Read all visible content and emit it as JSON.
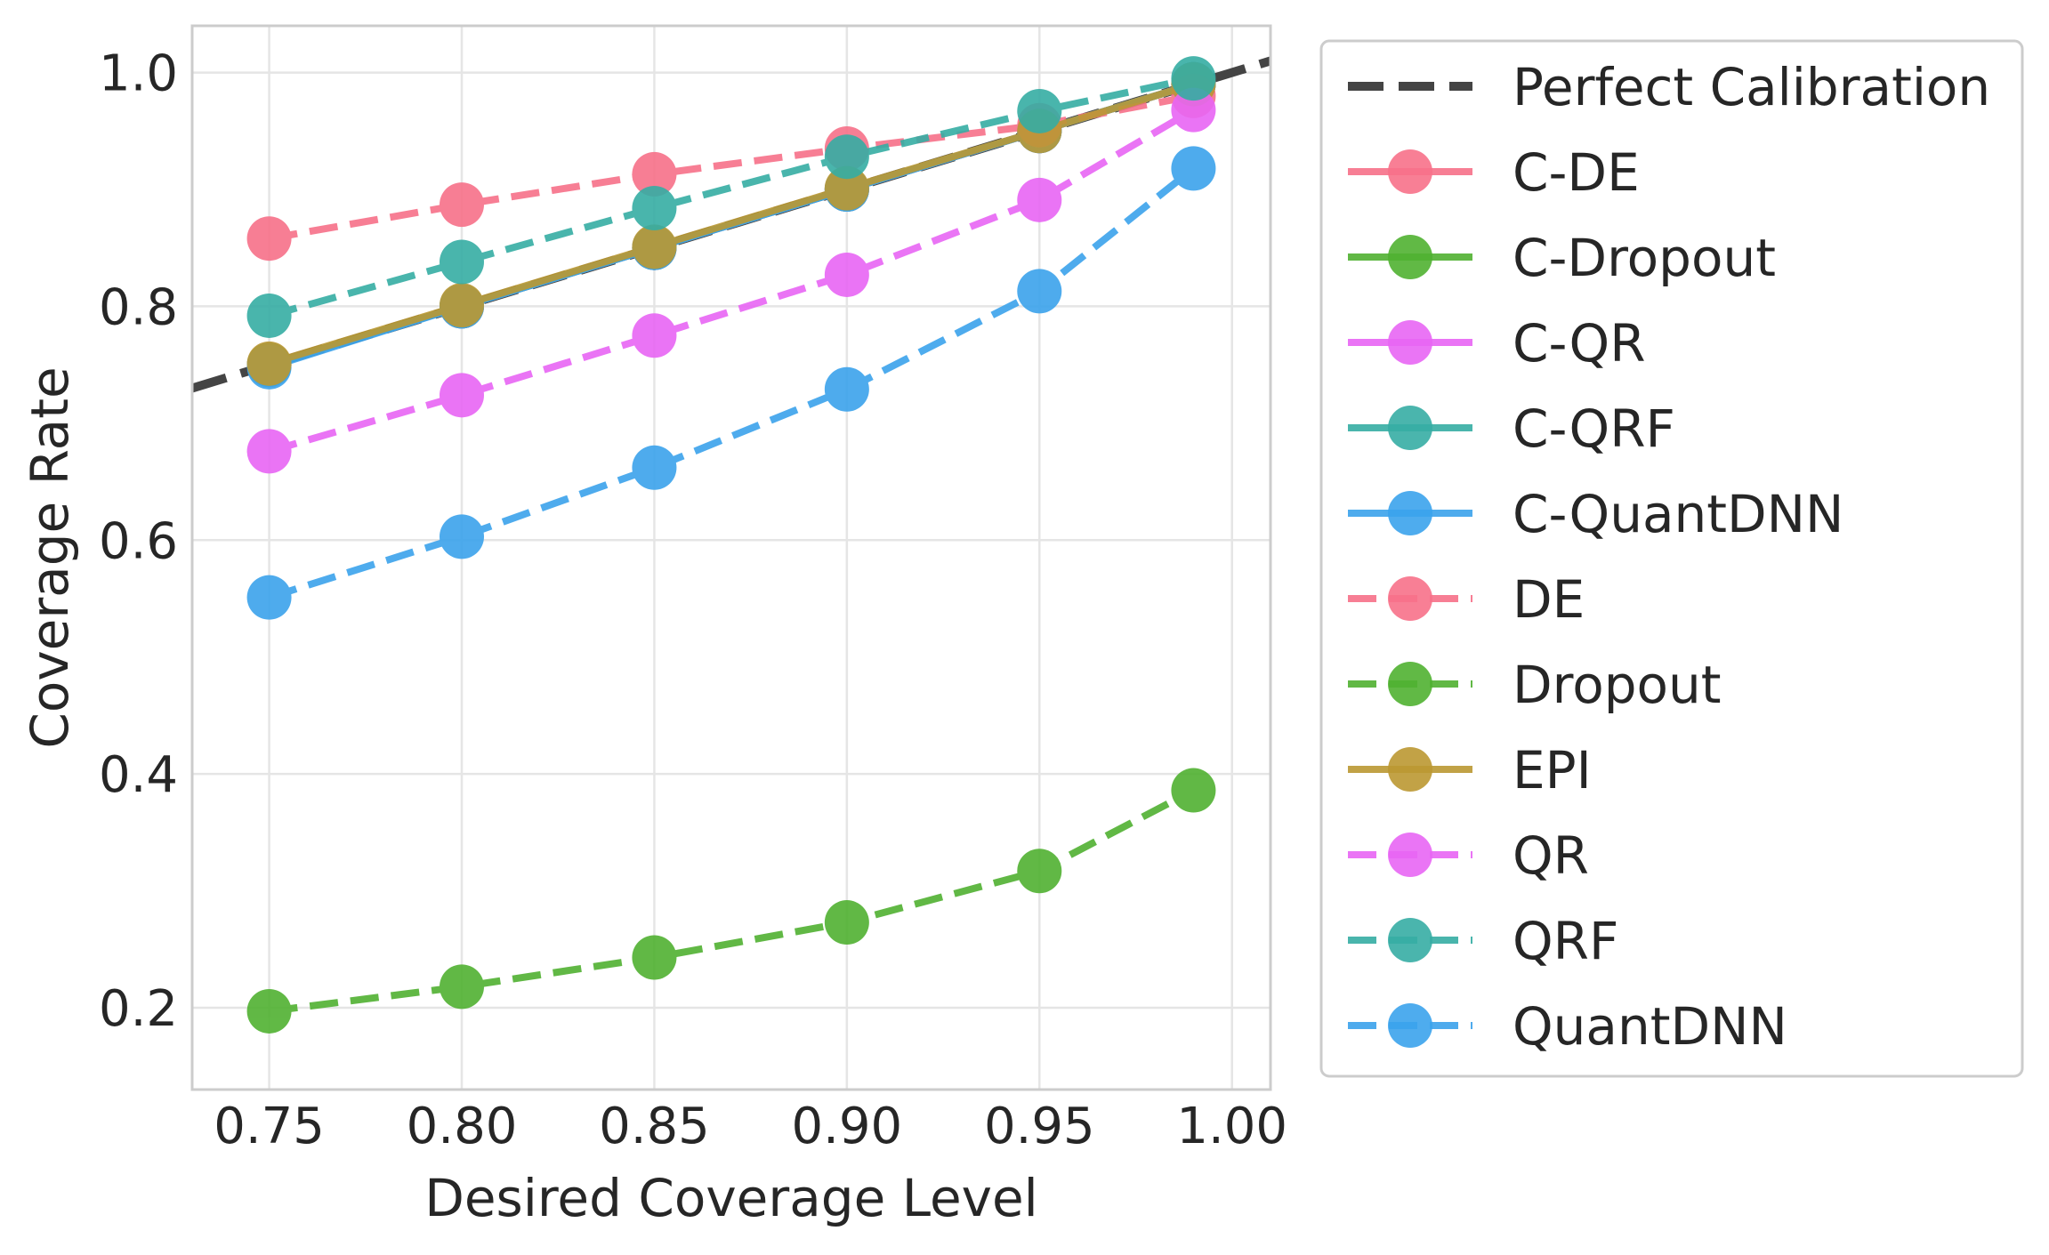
{
  "chart_data": {
    "type": "line",
    "xlabel": "Desired Coverage Level",
    "ylabel": "Coverage Rate",
    "xlim": [
      0.73,
      1.01
    ],
    "ylim": [
      0.13,
      1.04
    ],
    "xticks": [
      0.75,
      0.8,
      0.85,
      0.9,
      0.95,
      1.0
    ],
    "xtick_labels": [
      "0.75",
      "0.80",
      "0.85",
      "0.90",
      "0.95",
      "1.00"
    ],
    "yticks": [
      0.2,
      0.4,
      0.6,
      0.8,
      1.0
    ],
    "ytick_labels": [
      "0.2",
      "0.4",
      "0.6",
      "0.8",
      "1.0"
    ],
    "grid": true,
    "legend_position": "outside-right",
    "x": [
      0.75,
      0.8,
      0.85,
      0.9,
      0.95,
      0.99
    ],
    "reference_line": {
      "name": "Perfect Calibration",
      "x": [
        0.73,
        1.01
      ],
      "y": [
        0.73,
        1.01
      ],
      "color": "#444444",
      "style": "dashed"
    },
    "series": [
      {
        "name": "C-DE",
        "color": "#f77189",
        "style": "solid",
        "values": [
          0.75,
          0.8,
          0.85,
          0.9,
          0.95,
          0.99
        ]
      },
      {
        "name": "C-Dropout",
        "color": "#50b131",
        "style": "solid",
        "values": [
          0.75,
          0.8,
          0.85,
          0.9,
          0.95,
          0.99
        ]
      },
      {
        "name": "C-QR",
        "color": "#e866f4",
        "style": "solid",
        "values": [
          0.75,
          0.8,
          0.85,
          0.9,
          0.95,
          0.99
        ]
      },
      {
        "name": "C-QRF",
        "color": "#36ada4",
        "style": "solid",
        "values": [
          0.75,
          0.8,
          0.85,
          0.9,
          0.95,
          0.99
        ]
      },
      {
        "name": "C-QuantDNN",
        "color": "#3ba3ec",
        "style": "solid",
        "values": [
          0.748,
          0.8,
          0.85,
          0.9,
          0.95,
          0.99
        ]
      },
      {
        "name": "DE",
        "color": "#f77189",
        "style": "dashed",
        "values": [
          0.858,
          0.887,
          0.913,
          0.935,
          0.955,
          0.98
        ]
      },
      {
        "name": "Dropout",
        "color": "#50b131",
        "style": "dashed",
        "values": [
          0.197,
          0.218,
          0.243,
          0.273,
          0.317,
          0.386
        ]
      },
      {
        "name": "EPI",
        "color": "#bb9832",
        "style": "solid",
        "values": [
          0.751,
          0.801,
          0.851,
          0.901,
          0.95,
          0.99
        ]
      },
      {
        "name": "QR",
        "color": "#e866f4",
        "style": "dashed",
        "values": [
          0.676,
          0.724,
          0.775,
          0.827,
          0.891,
          0.968
        ]
      },
      {
        "name": "QRF",
        "color": "#36ada4",
        "style": "dashed",
        "values": [
          0.792,
          0.838,
          0.884,
          0.928,
          0.967,
          0.995
        ]
      },
      {
        "name": "QuantDNN",
        "color": "#3ba3ec",
        "style": "dashed",
        "values": [
          0.551,
          0.603,
          0.662,
          0.729,
          0.813,
          0.918
        ]
      }
    ]
  }
}
